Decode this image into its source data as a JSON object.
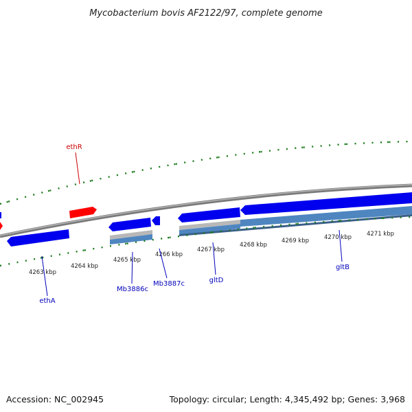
{
  "title": "Mycobacterium bovis AF2122/97, complete genome",
  "footer": {
    "accession": "Accession: NC_002945",
    "summary": "Topology: circular; Length: 4,345,492 bp; Genes: 3,968"
  },
  "colors": {
    "backbone": "#7a7a7a",
    "backbone_highlight": "#b5b5b5",
    "forward_gene": "#ff0000",
    "reverse_gene": "#0000ee",
    "rna_feature": "#b8b8b8",
    "cds_feature": "#4f86c0",
    "tick": "#1a7a1a",
    "forward_label": "#cc0000",
    "reverse_label": "#0000bb"
  },
  "ticks": {
    "major_labels": [
      "4263 kbp",
      "4264 kbp",
      "4265 kbp",
      "4266 kbp",
      "4267 kbp",
      "4268 kbp",
      "4269 kbp",
      "4270 kbp",
      "4271 kbp"
    ]
  },
  "gene_labels": [
    {
      "name": "ethR",
      "strand": "forward"
    },
    {
      "name": "ethA",
      "strand": "reverse"
    },
    {
      "name": "Mb3886c",
      "strand": "reverse"
    },
    {
      "name": "Mb3887c",
      "strand": "reverse"
    },
    {
      "name": "gltD",
      "strand": "reverse"
    },
    {
      "name": "gltB",
      "strand": "reverse"
    }
  ],
  "icons": {
    "arrow": "gene-arrow-icon"
  }
}
